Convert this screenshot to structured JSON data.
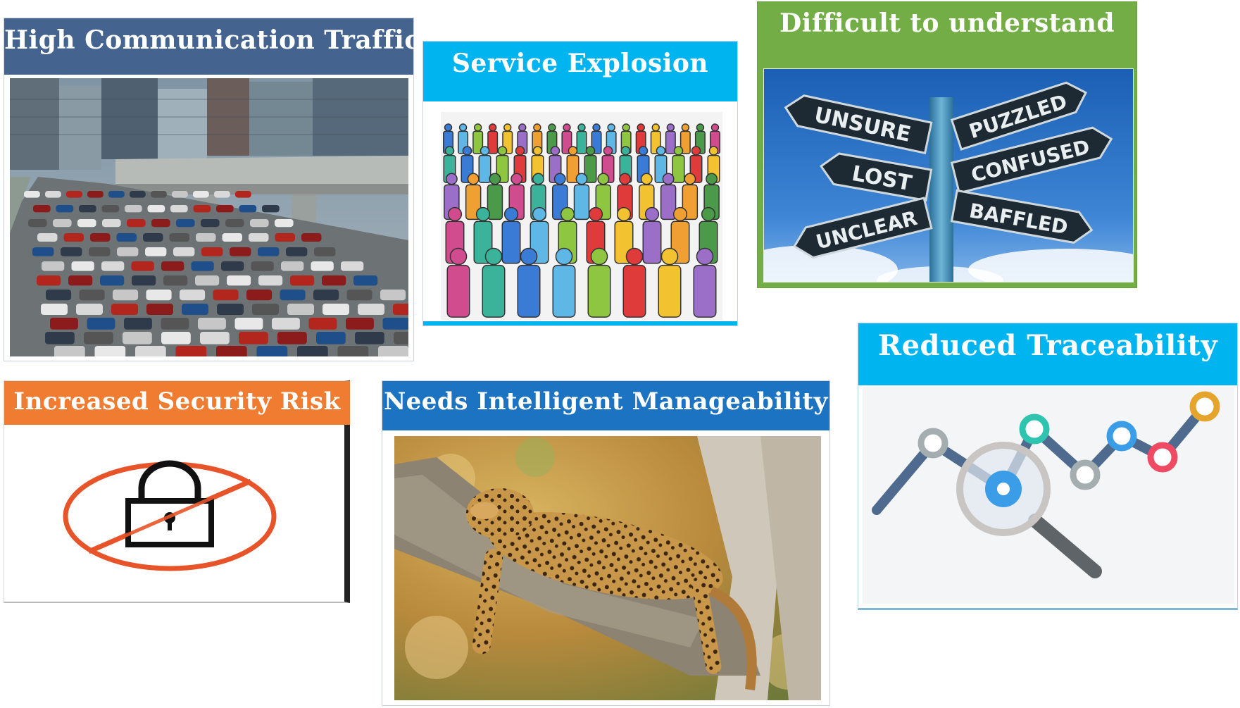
{
  "panels": {
    "traffic": {
      "title": "High Communication Traffic",
      "header_color": "#44638f"
    },
    "service": {
      "title": "Service Explosion",
      "header_color": "#00b4ef"
    },
    "difficult": {
      "title": "Difficult to understand",
      "header_color": "#72ad45"
    },
    "security": {
      "title": "Increased Security Risk",
      "header_color": "#ef7c30"
    },
    "manage": {
      "title": "Needs Intelligent Manageability",
      "header_color": "#1c73c1"
    },
    "trace": {
      "title": "Reduced Traceability",
      "header_color": "#00b4ef"
    }
  },
  "signpost": {
    "left_signs": [
      "UNSURE",
      "LOST",
      "UNCLEAR"
    ],
    "right_signs": [
      "PUZZLED",
      "CONFUSED",
      "BAFFLED"
    ]
  },
  "icons": {
    "traffic": "traffic-jam-photo",
    "service": "crowd-of-people-icon",
    "difficult": "signpost-photo",
    "security": "no-lock-icon",
    "manage": "leopard-on-tree-photo",
    "trace": "line-chart-magnifier-icon"
  }
}
